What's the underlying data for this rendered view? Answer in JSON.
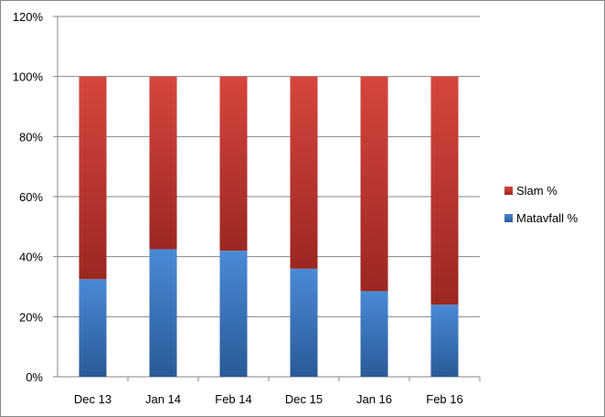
{
  "chart_data": {
    "type": "bar",
    "stacked": true,
    "categories": [
      "Dec 13",
      "Jan 14",
      "Feb 14",
      "Dec 15",
      "Jan 16",
      "Feb 16"
    ],
    "series": [
      {
        "name": "Matavfall %",
        "values": [
          32.5,
          42.5,
          42.0,
          36.0,
          28.5,
          24.0
        ],
        "color": "#3d78c2"
      },
      {
        "name": "Slam %",
        "values": [
          67.5,
          57.5,
          58.0,
          64.0,
          71.5,
          76.0
        ],
        "color": "#c0392b"
      }
    ],
    "ylim": [
      0,
      120
    ],
    "y_ticks": [
      "0%",
      "20%",
      "40%",
      "60%",
      "80%",
      "100%",
      "120%"
    ],
    "y_tick_values": [
      0,
      20,
      40,
      60,
      80,
      100,
      120
    ],
    "grid": true,
    "legend_position": "right",
    "legend_order": [
      "Slam %",
      "Matavfall %"
    ]
  }
}
